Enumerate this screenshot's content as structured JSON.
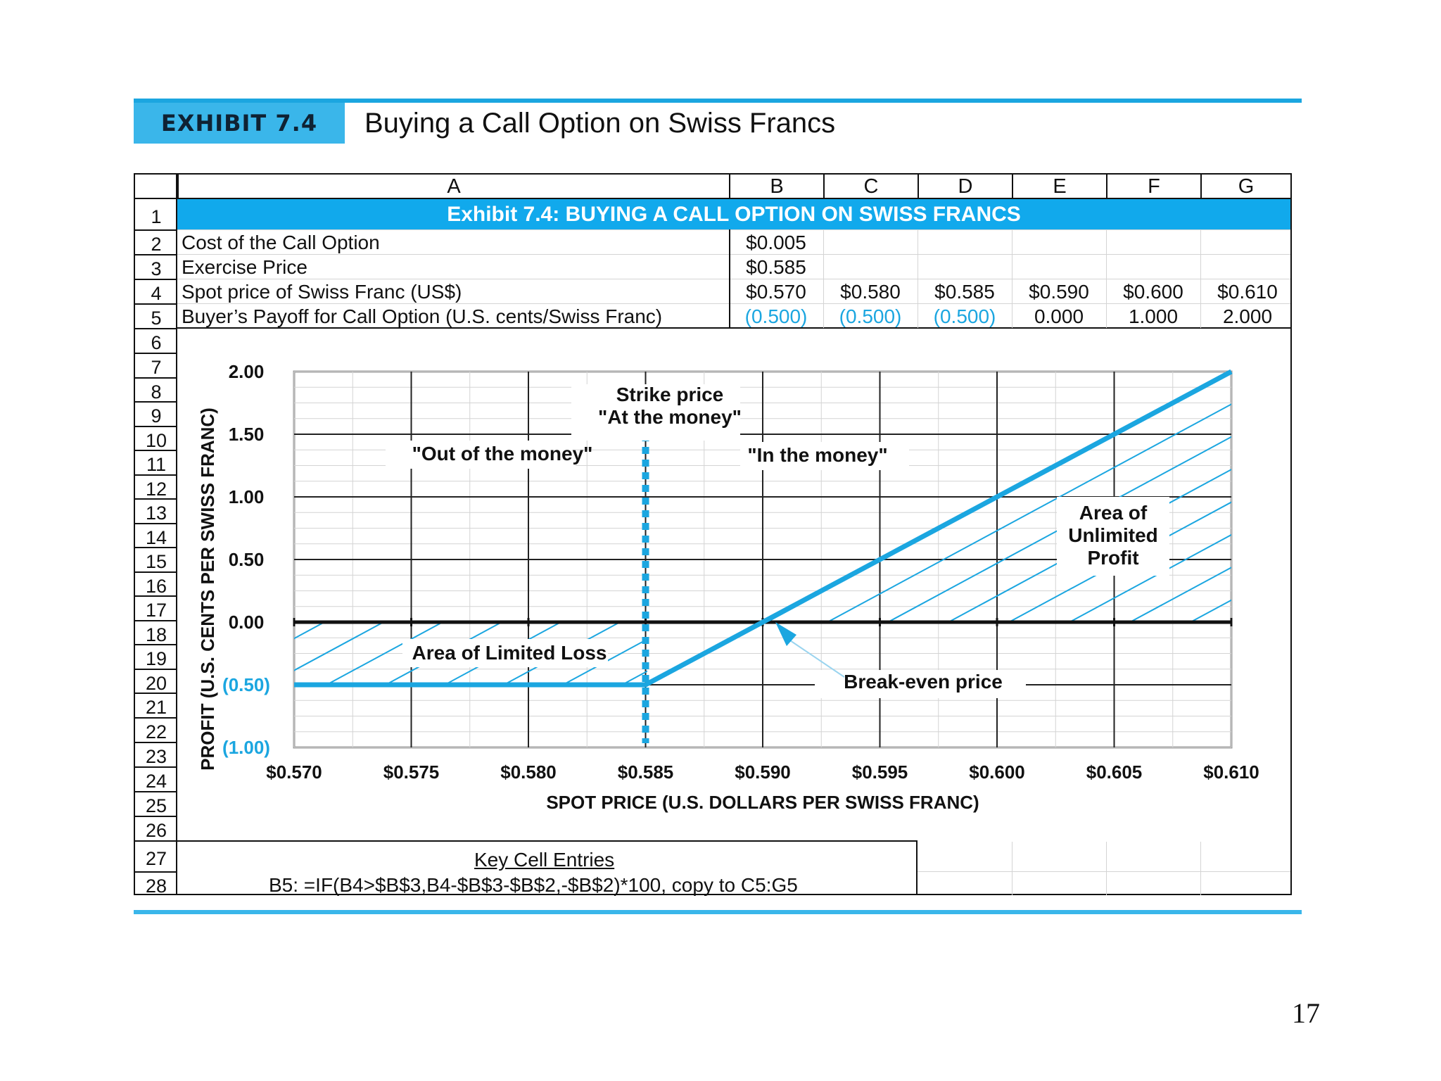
{
  "header": {
    "exhibit_label": "EXHIBIT 7.4",
    "title": "Buying a Call Option on Swiss Francs"
  },
  "spreadsheet": {
    "columns": [
      "A",
      "B",
      "C",
      "D",
      "E",
      "F",
      "G"
    ],
    "row_numbers": [
      "1",
      "2",
      "3",
      "4",
      "5",
      "6",
      "7",
      "8",
      "9",
      "10",
      "11",
      "12",
      "13",
      "14",
      "15",
      "16",
      "17",
      "18",
      "19",
      "20",
      "21",
      "22",
      "23",
      "24",
      "25",
      "26",
      "27",
      "28"
    ],
    "title_row": "Exhibit 7.4: BUYING A CALL OPTION ON SWISS FRANCS",
    "rows": [
      {
        "label": "Cost of the Call Option",
        "values": [
          "$0.005"
        ]
      },
      {
        "label": "Exercise Price",
        "values": [
          "$0.585"
        ]
      },
      {
        "label": "Spot price of Swiss Franc (US$)",
        "values": [
          "$0.570",
          "$0.580",
          "$0.585",
          "$0.590",
          "$0.600",
          "$0.610"
        ]
      },
      {
        "label": "Buyer’s Payoff for Call Option (U.S. cents/Swiss Franc)",
        "values": [
          "(0.500)",
          "(0.500)",
          "(0.500)",
          "0.000",
          "1.000",
          "2.000"
        ]
      }
    ],
    "key_cell_entries": {
      "title": "Key Cell Entries",
      "formula": "B5:  =IF(B4>$B$3,B4-$B$3-$B$2,-$B$2)*100, copy to C5:G5"
    }
  },
  "colors": {
    "accent": "#1ba6e0",
    "banner": "#3ab6ea",
    "title_bar": "#11a9ec",
    "negative_text": "#1ba6e0",
    "grid": "#d4d4d4"
  },
  "chart_data": {
    "type": "line",
    "xlabel": "SPOT PRICE (U.S. DOLLARS PER SWISS FRANC)",
    "ylabel": "PROFIT (U.S. CENTS PER SWISS FRANC)",
    "xlim": [
      0.57,
      0.61
    ],
    "ylim": [
      -1.0,
      2.0
    ],
    "x_ticks": [
      "$0.570",
      "$0.575",
      "$0.580",
      "$0.585",
      "$0.590",
      "$0.595",
      "$0.600",
      "$0.605",
      "$0.610"
    ],
    "y_ticks": [
      {
        "value": 2.0,
        "label": "2.00"
      },
      {
        "value": 1.5,
        "label": "1.50"
      },
      {
        "value": 1.0,
        "label": "1.00"
      },
      {
        "value": 0.5,
        "label": "0.50"
      },
      {
        "value": 0.0,
        "label": "0.00"
      },
      {
        "value": -0.5,
        "label": "(0.50)"
      },
      {
        "value": -1.0,
        "label": "(1.00)"
      }
    ],
    "series": [
      {
        "x": [
          0.57,
          0.585,
          0.6,
          0.61
        ],
        "y": [
          -0.5,
          -0.5,
          1.0,
          2.0
        ]
      }
    ],
    "strike_price": 0.585,
    "break_even": 0.59,
    "annotations": {
      "strike": [
        "Strike price",
        "\"At the money\""
      ],
      "out_of_money": "\"Out of the money\"",
      "in_money": "\"In the money\"",
      "limited_loss": "Area of Limited Loss",
      "unlimited_profit": [
        "Area of",
        "Unlimited",
        "Profit"
      ],
      "break_even_label": "Break-even price"
    },
    "grid": true
  }
}
